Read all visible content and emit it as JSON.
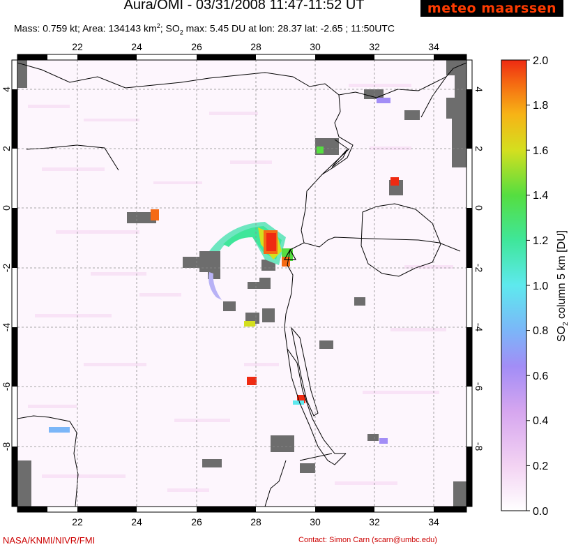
{
  "header": {
    "title": "Aura/OMI - 03/31/2008 11:47-11:52 UT",
    "logo_text": "meteo maarssen",
    "stats": {
      "mass": "Mass: 0.759 kt; ",
      "area": "Area: 134143 km",
      "area_exp": "2",
      "so2_label": "; SO",
      "so2_sub": "2",
      "rest": " max: 5.45 DU at lon: 28.37 lat: -2.65 ; 11:50UTC"
    }
  },
  "map": {
    "lon_ticks": [
      "22",
      "24",
      "26",
      "28",
      "30",
      "32",
      "34"
    ],
    "lat_ticks": [
      "4",
      "2",
      "0",
      "-2",
      "-4",
      "-6",
      "-8"
    ],
    "volcano_marker_icon": "triangle-icon"
  },
  "colorbar": {
    "label_pre": "SO",
    "label_sub": "2",
    "label_post": " column 5 km [DU]",
    "ticks": [
      "2.0",
      "1.8",
      "1.6",
      "1.4",
      "1.2",
      "1.0",
      "0.8",
      "0.6",
      "0.4",
      "0.2",
      "0.0"
    ],
    "colors": [
      "#ffffff",
      "#f2d6f2",
      "#d8a8ef",
      "#9c8ef7",
      "#79b8f8",
      "#5fe8ee",
      "#3fe69a",
      "#58e042",
      "#d2e01f",
      "#f7b517",
      "#f56a14",
      "#ef2a12"
    ]
  },
  "footer": {
    "credit": "NASA/KNMI/NIVR/FMI",
    "contact": "Contact: Simon Carn (scarn@umbc.edu)"
  }
}
